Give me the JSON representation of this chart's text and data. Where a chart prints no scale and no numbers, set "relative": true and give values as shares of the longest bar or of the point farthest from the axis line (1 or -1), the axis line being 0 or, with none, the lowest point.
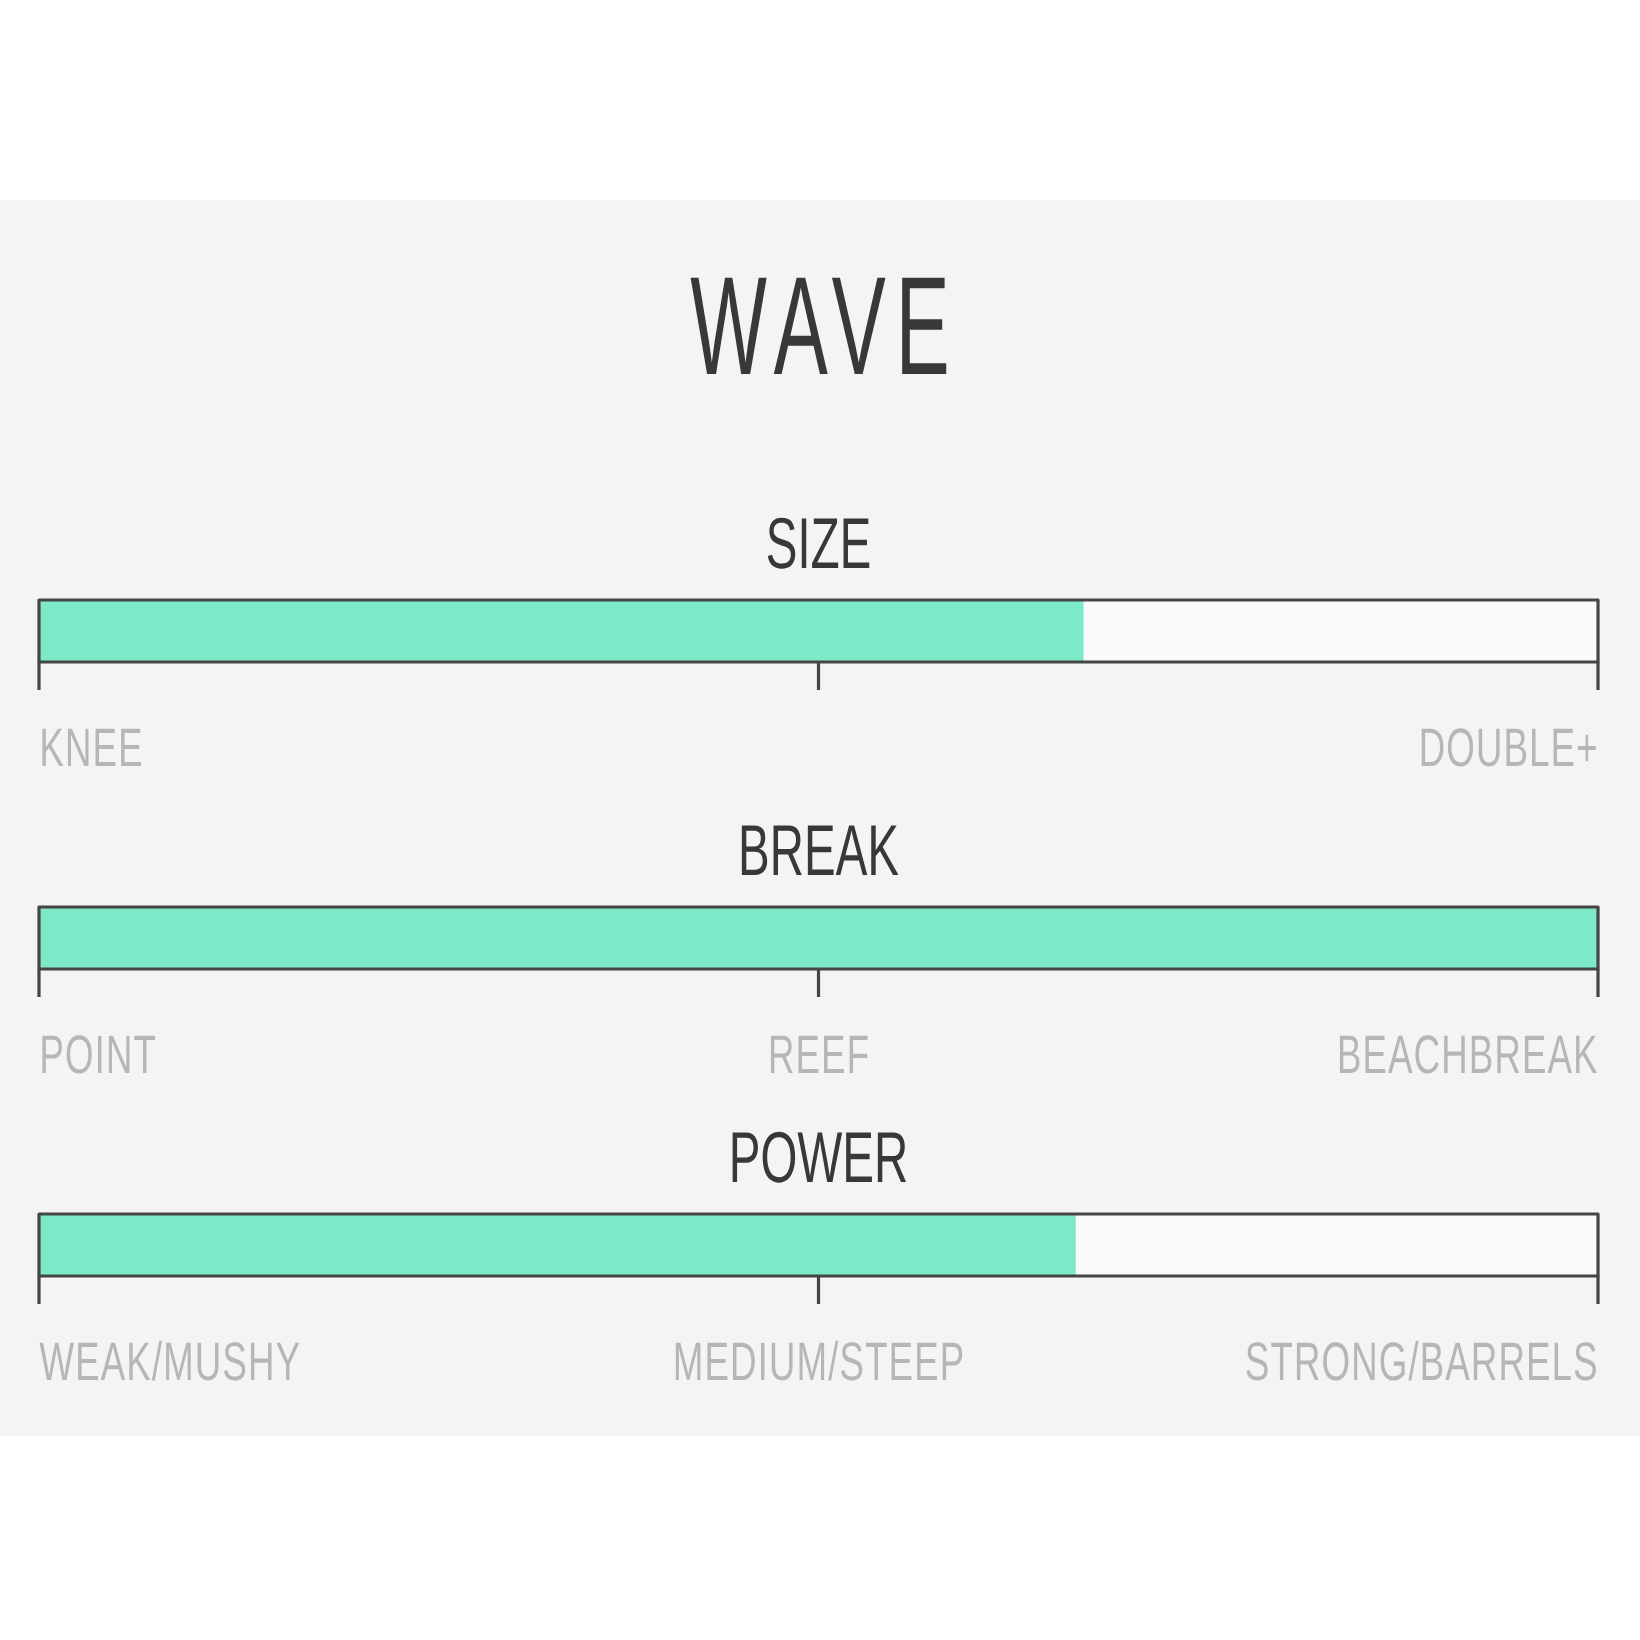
{
  "chart_data": {
    "type": "bar",
    "orientation": "horizontal",
    "relative": true,
    "title": "WAVE",
    "categories": [
      "SIZE",
      "BREAK",
      "POWER"
    ],
    "values": [
      0.67,
      1,
      0.665
    ],
    "color": "#7de9c9",
    "annotations": [
      "KNEE",
      "DOUBLE+",
      "POINT",
      "REEF",
      "BEACHBREAK",
      "WEAK/MUSHY",
      "MEDIUM/STEEP",
      "STRONG/BARRELS"
    ]
  }
}
